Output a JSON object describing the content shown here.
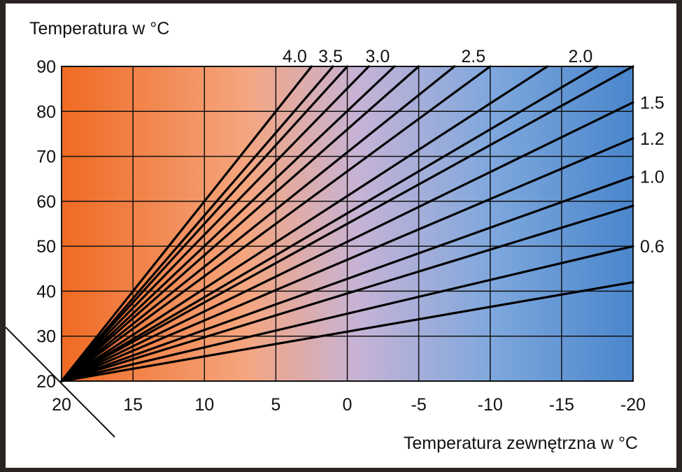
{
  "chart_data": {
    "type": "line",
    "ylabel": "Temperatura w °C",
    "xlabel": "Temperatura zewnętrzna w °C",
    "xlim": [
      20,
      -20
    ],
    "ylim": [
      20,
      90
    ],
    "x_ticks": [
      20,
      15,
      10,
      5,
      0,
      -5,
      -10,
      -15,
      -20
    ],
    "y_ticks": [
      20,
      30,
      40,
      50,
      60,
      70,
      80,
      90
    ],
    "grid": true,
    "background_gradient": [
      "#ef6a22",
      "#f5a57e",
      "#c6b3d6",
      "#7fa8dd",
      "#4a86cc"
    ],
    "line_color": "#000000",
    "origin": [
      20,
      20
    ],
    "series": [
      {
        "name": "4.0",
        "x_end": 2.5,
        "y_end": 90
      },
      {
        "name": "",
        "x_end": 1.0,
        "y_end": 90
      },
      {
        "name": "3.5",
        "x_end": 0.0,
        "y_end": 90
      },
      {
        "name": "",
        "x_end": -1.5,
        "y_end": 90
      },
      {
        "name": "3.0",
        "x_end": -3.3,
        "y_end": 90
      },
      {
        "name": "",
        "x_end": -5.0,
        "y_end": 90
      },
      {
        "name": "",
        "x_end": -7.5,
        "y_end": 90
      },
      {
        "name": "2.5",
        "x_end": -10.0,
        "y_end": 90
      },
      {
        "name": "",
        "x_end": -14.0,
        "y_end": 90
      },
      {
        "name": "2.0",
        "x_end": -17.5,
        "y_end": 90
      },
      {
        "name": "",
        "x_end": -20,
        "y_end": 90
      },
      {
        "name": "1.5",
        "x_end": -20,
        "y_end": 82
      },
      {
        "name": "1.2",
        "x_end": -20,
        "y_end": 74
      },
      {
        "name": "1.0",
        "x_end": -20,
        "y_end": 65.5
      },
      {
        "name": "",
        "x_end": -20,
        "y_end": 59
      },
      {
        "name": "0.6",
        "x_end": -20,
        "y_end": 50
      },
      {
        "name": "",
        "x_end": -20,
        "y_end": 42
      }
    ]
  }
}
